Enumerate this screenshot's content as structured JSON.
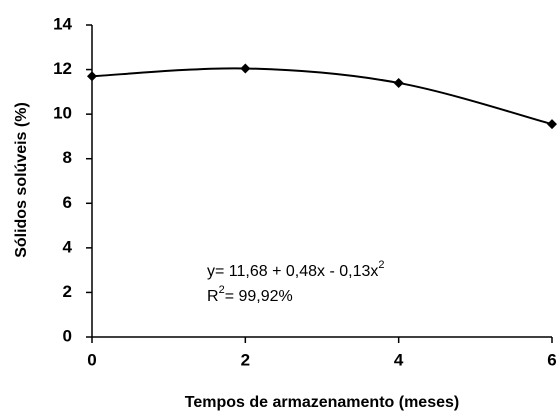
{
  "chart_data": {
    "type": "line",
    "x_label": "Tempos de armazenamento (meses)",
    "y_label": "Sólidos solúveis (%)",
    "x": [
      0,
      2,
      4,
      6
    ],
    "series": [
      {
        "name": null,
        "color": "#000000",
        "values": [
          11.7,
          12.05,
          11.4,
          9.55
        ]
      }
    ],
    "xlim": [
      0,
      6
    ],
    "xticks": [
      0,
      2,
      4,
      6
    ],
    "ylim": [
      0,
      14
    ],
    "yticks": [
      0,
      2,
      4,
      6,
      8,
      10,
      12,
      14
    ],
    "grid": false,
    "annotations": [
      [
        "y=  11,68 + 0,48x - 0,13x",
        "2"
      ],
      [
        "R",
        "2",
        "= 99,92%"
      ]
    ]
  }
}
